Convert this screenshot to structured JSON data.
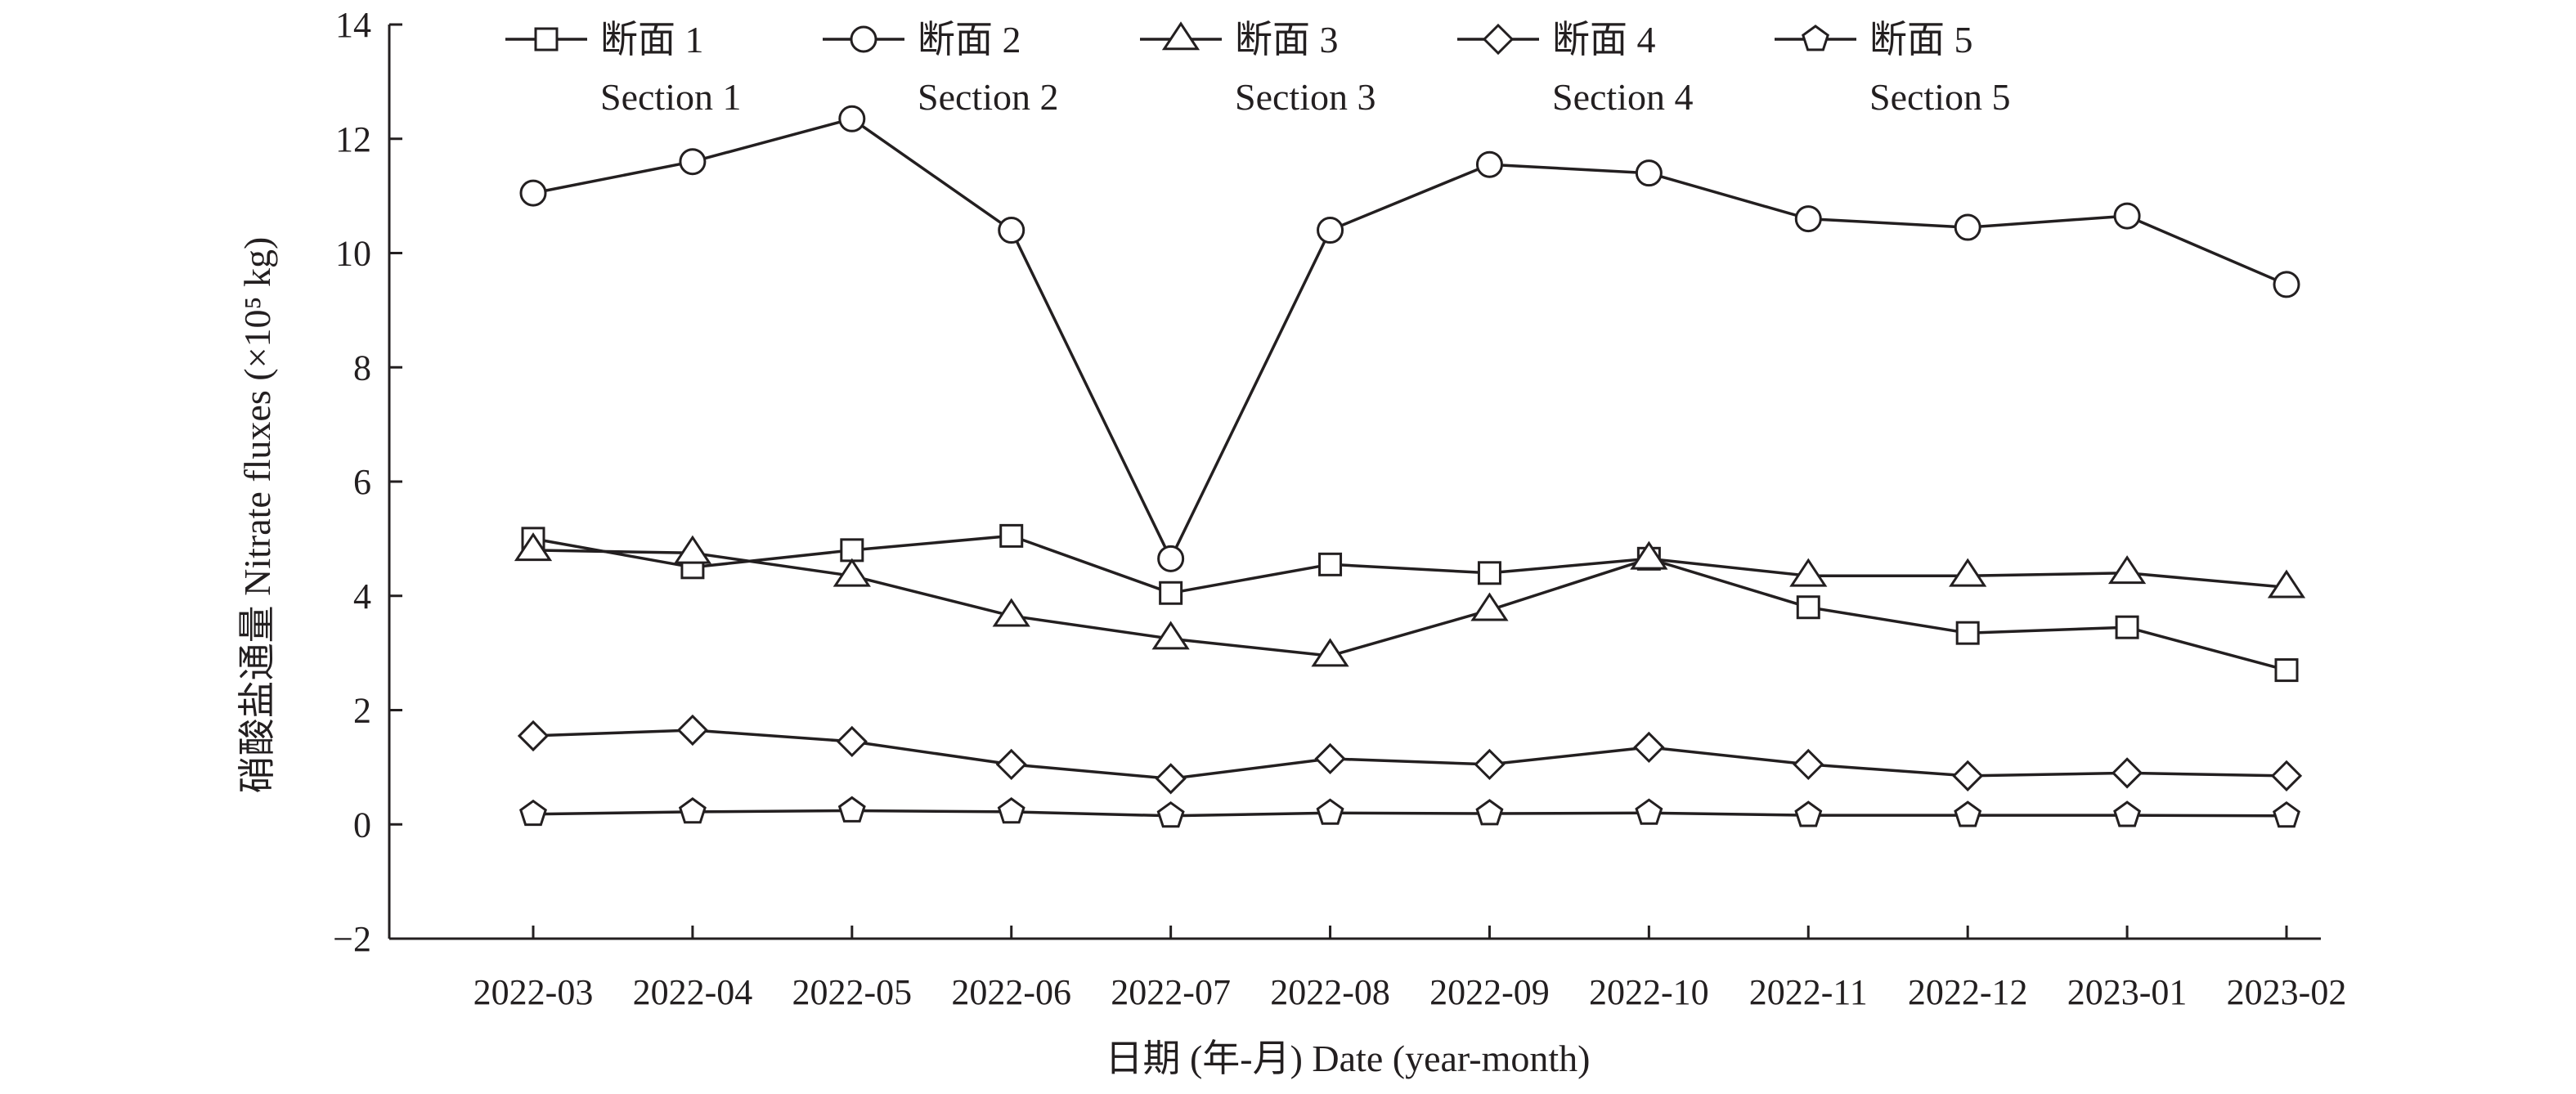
{
  "chart_data": {
    "type": "line",
    "xlabel": "日期 (年-月) Date (year-month)",
    "ylabel": "硝酸盐通量 Nitrate fluxes (×10⁵ kg)",
    "ylim": [
      -2,
      14
    ],
    "yticks": [
      -2,
      0,
      2,
      4,
      6,
      8,
      10,
      12,
      14
    ],
    "ytick_labels": [
      "−2",
      "0",
      "2",
      "4",
      "6",
      "8",
      "10",
      "12",
      "14"
    ],
    "grid": false,
    "legend_position": "top",
    "categories": [
      "2022-03",
      "2022-04",
      "2022-05",
      "2022-06",
      "2022-07",
      "2022-08",
      "2022-09",
      "2022-10",
      "2022-11",
      "2022-12",
      "2023-01",
      "2023-02"
    ],
    "series": [
      {
        "name": "断面 1",
        "name_en": "Section 1",
        "marker": "square",
        "values": [
          5.0,
          4.5,
          4.8,
          5.05,
          4.05,
          4.55,
          4.4,
          4.65,
          3.8,
          3.35,
          3.45,
          2.7
        ]
      },
      {
        "name": "断面 2",
        "name_en": "Section 2",
        "marker": "circle",
        "values": [
          11.05,
          11.6,
          12.35,
          10.4,
          4.65,
          10.4,
          11.55,
          11.4,
          10.6,
          10.45,
          10.65,
          9.45
        ]
      },
      {
        "name": "断面 3",
        "name_en": "Section 3",
        "marker": "triangle",
        "values": [
          4.8,
          4.75,
          4.35,
          3.65,
          3.25,
          2.95,
          3.75,
          4.65,
          4.35,
          4.35,
          4.4,
          4.15
        ]
      },
      {
        "name": "断面 4",
        "name_en": "Section 4",
        "marker": "diamond",
        "values": [
          1.55,
          1.65,
          1.45,
          1.05,
          0.8,
          1.15,
          1.05,
          1.35,
          1.05,
          0.85,
          0.9,
          0.85
        ]
      },
      {
        "name": "断面 5",
        "name_en": "Section 5",
        "marker": "pentagon",
        "values": [
          0.18,
          0.22,
          0.24,
          0.22,
          0.15,
          0.2,
          0.19,
          0.2,
          0.16,
          0.16,
          0.16,
          0.15
        ]
      }
    ]
  },
  "colors": {
    "stroke": "#231f20",
    "marker_fill": "#ffffff",
    "background": "#ffffff"
  }
}
